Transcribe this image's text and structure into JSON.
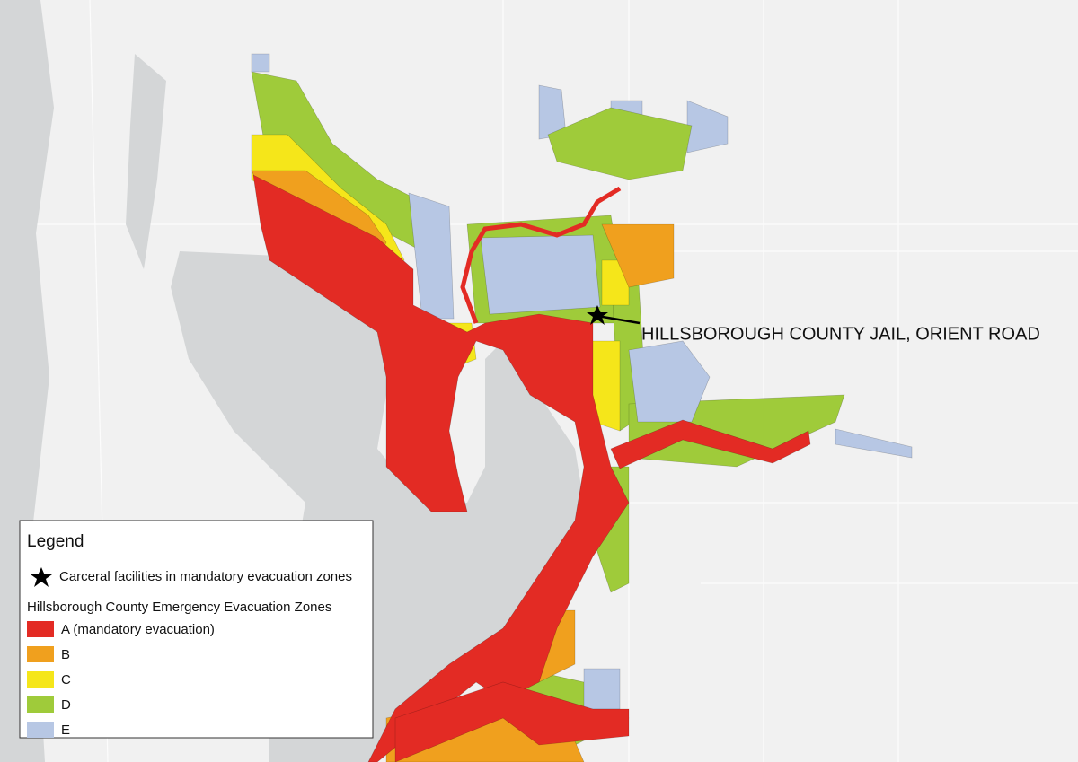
{
  "map": {
    "annotation": "HILLSBOROUGH COUNTY JAIL, ORIENT ROAD",
    "legend": {
      "title": "Legend",
      "facility_label": "Carceral facilities in mandatory evacuation zones",
      "zones_title": "Hillsborough County Emergency Evacuation Zones",
      "zones": [
        {
          "label": "A (mandatory evacuation)",
          "color": "#e32b24"
        },
        {
          "label": "B",
          "color": "#f0a01e"
        },
        {
          "label": "C",
          "color": "#f5e61a"
        },
        {
          "label": "D",
          "color": "#9fcb3a"
        },
        {
          "label": "E",
          "color": "#b7c7e4"
        }
      ]
    }
  }
}
